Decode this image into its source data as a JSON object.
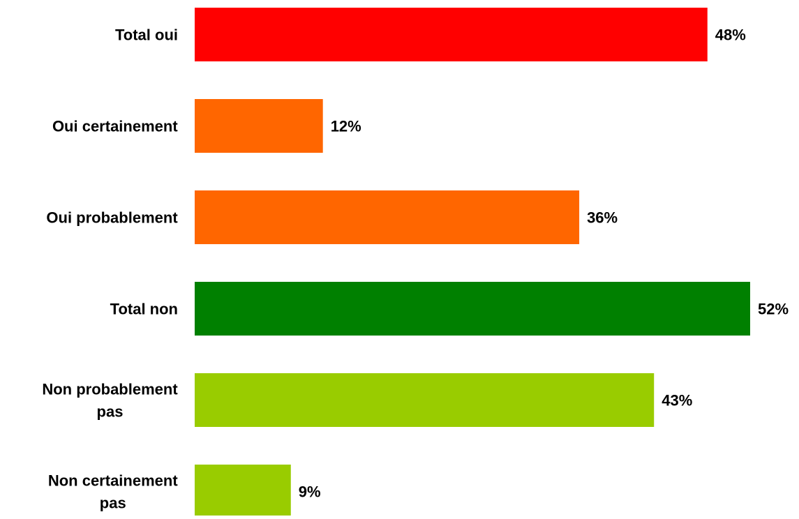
{
  "chart_data": {
    "type": "bar",
    "orientation": "horizontal",
    "categories": [
      "Total oui",
      "Oui certainement",
      "Oui probablement",
      "Total non",
      "Non probablement pas",
      "Non certainement pas"
    ],
    "values": [
      48,
      12,
      36,
      52,
      43,
      9
    ],
    "value_labels": [
      "48%",
      "12%",
      "36%",
      "52%",
      "43%",
      "9%"
    ],
    "bar_colors": [
      "#ff0000",
      "#ff6600",
      "#ff6600",
      "#008000",
      "#99cc00",
      "#99cc00"
    ],
    "title": "",
    "xlabel": "",
    "ylabel": "",
    "xlim": [
      0,
      52
    ],
    "grid": false,
    "legend": "none"
  }
}
